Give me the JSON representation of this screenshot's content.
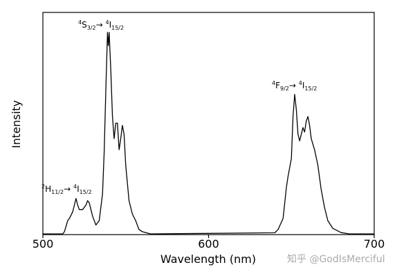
{
  "chart_data": {
    "type": "line",
    "x_label": "Wavelength (nm)",
    "y_label": "Intensity",
    "x": [
      500,
      512,
      513,
      515,
      516,
      518,
      520,
      521,
      522,
      524,
      526,
      527,
      528,
      530,
      532,
      534,
      536,
      537,
      538,
      539,
      539.5,
      540,
      541,
      542,
      543,
      544,
      545,
      546,
      547,
      548,
      549,
      550,
      552,
      554,
      556,
      558,
      560,
      565,
      640,
      642,
      645,
      647,
      648,
      650,
      651,
      652,
      653,
      654,
      655,
      656,
      657,
      658,
      659,
      660,
      661,
      662,
      664,
      666,
      668,
      670,
      672,
      675,
      680,
      685,
      700
    ],
    "values": [
      0,
      0,
      0.01,
      0.06,
      0.07,
      0.1,
      0.16,
      0.13,
      0.11,
      0.11,
      0.13,
      0.15,
      0.14,
      0.08,
      0.04,
      0.06,
      0.18,
      0.37,
      0.65,
      0.91,
      0.85,
      0.91,
      0.74,
      0.53,
      0.43,
      0.5,
      0.5,
      0.38,
      0.43,
      0.49,
      0.45,
      0.31,
      0.15,
      0.09,
      0.06,
      0.02,
      0.01,
      0,
      0.005,
      0.02,
      0.07,
      0.21,
      0.26,
      0.34,
      0.53,
      0.63,
      0.56,
      0.45,
      0.42,
      0.45,
      0.48,
      0.46,
      0.51,
      0.53,
      0.49,
      0.43,
      0.38,
      0.31,
      0.2,
      0.12,
      0.06,
      0.025,
      0.006,
      0,
      0
    ],
    "color": "#000000",
    "xlim": [
      500,
      700
    ],
    "xticks": [
      500,
      600,
      700
    ],
    "ylim": [
      0,
      1
    ],
    "annotations": [
      [
        "2",
        "H",
        "11/2",
        "→ ",
        "4",
        "I",
        "15/2"
      ],
      [
        "4",
        "S",
        "3/2",
        "→ ",
        "4",
        "I",
        "15/2"
      ],
      [
        "4",
        "F",
        "9/2",
        "→ ",
        "4",
        "I",
        "15/2"
      ]
    ],
    "watermark": "知乎 @GodIsMerciful"
  }
}
